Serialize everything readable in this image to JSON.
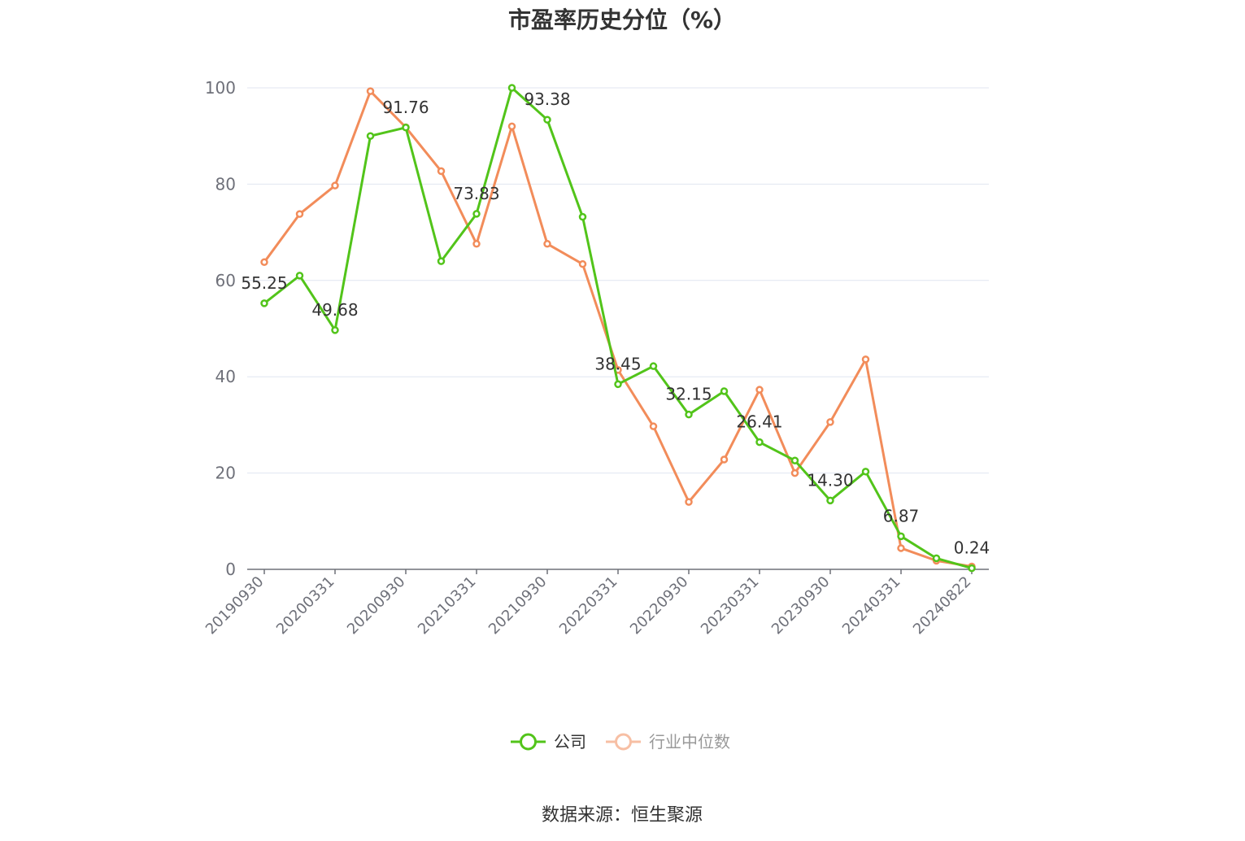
{
  "chart_data": {
    "type": "line",
    "title": "市盈率历史分位（%）",
    "source": "数据来源：恒生聚源",
    "ylim": [
      0,
      100
    ],
    "yticks": [
      "0",
      "20",
      "40",
      "60",
      "80",
      "100"
    ],
    "xticks": [
      "20190930",
      "20200331",
      "20200930",
      "20210331",
      "20210930",
      "20220331",
      "20220930",
      "20230331",
      "20230930",
      "20240331",
      "20240822"
    ],
    "legend_position": "bottom",
    "grid": true,
    "series": [
      {
        "name": "公司",
        "color": "#52c41a",
        "values": [
          55.25,
          61.0,
          49.68,
          90.0,
          91.76,
          64.0,
          73.83,
          100.0,
          93.38,
          73.2,
          38.45,
          42.2,
          32.15,
          37.0,
          26.41,
          22.6,
          14.3,
          20.3,
          6.87,
          2.3,
          0.24
        ],
        "labels": [
          "55.25",
          "",
          "49.68",
          "",
          "91.76",
          "",
          "73.83",
          "",
          "93.38",
          "",
          "38.45",
          "",
          "32.15",
          "",
          "26.41",
          "",
          "14.30",
          "",
          "6.87",
          "",
          "0.24"
        ]
      },
      {
        "name": "行业中位数",
        "color": "#f28c5a",
        "values": [
          63.8,
          73.8,
          79.7,
          99.3,
          91.8,
          82.7,
          67.6,
          92.0,
          67.6,
          63.4,
          41.4,
          29.7,
          14.0,
          22.8,
          37.3,
          20.0,
          30.6,
          43.6,
          4.4,
          1.8,
          0.6
        ]
      }
    ]
  }
}
